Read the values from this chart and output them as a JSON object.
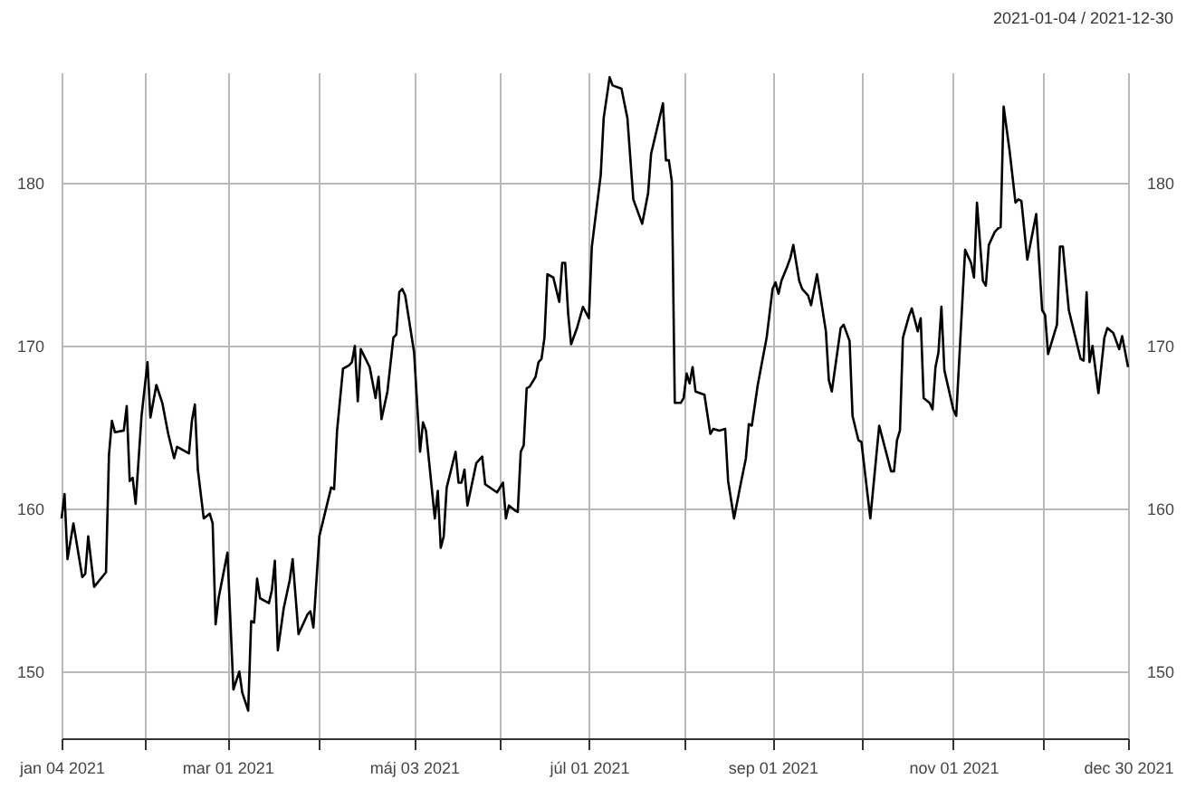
{
  "chart_data": {
    "type": "line",
    "subtitle": "2021-01-04 / 2021-12-30",
    "grid": true,
    "x": [
      "2021-01-04",
      "2021-01-05",
      "2021-01-06",
      "2021-01-08",
      "2021-01-11",
      "2021-01-12",
      "2021-01-13",
      "2021-01-15",
      "2021-01-19",
      "2021-01-20",
      "2021-01-21",
      "2021-01-22",
      "2021-01-25",
      "2021-01-26",
      "2021-01-27",
      "2021-01-28",
      "2021-01-29",
      "2021-01-31",
      "2021-02-02",
      "2021-02-03",
      "2021-02-05",
      "2021-02-07",
      "2021-02-09",
      "2021-02-11",
      "2021-02-12",
      "2021-02-16",
      "2021-02-17",
      "2021-02-18",
      "2021-02-19",
      "2021-02-21",
      "2021-02-23",
      "2021-02-24",
      "2021-02-25",
      "2021-02-26",
      "2021-03-01",
      "2021-03-03",
      "2021-03-05",
      "2021-03-06",
      "2021-03-08",
      "2021-03-09",
      "2021-03-10",
      "2021-03-11",
      "2021-03-12",
      "2021-03-15",
      "2021-03-16",
      "2021-03-17",
      "2021-03-18",
      "2021-03-20",
      "2021-03-22",
      "2021-03-23",
      "2021-03-25",
      "2021-03-28",
      "2021-03-29",
      "2021-03-30",
      "2021-04-01",
      "2021-04-03",
      "2021-04-05",
      "2021-04-06",
      "2021-04-07",
      "2021-04-09",
      "2021-04-11",
      "2021-04-12",
      "2021-04-13",
      "2021-04-14",
      "2021-04-15",
      "2021-04-18",
      "2021-04-20",
      "2021-04-21",
      "2021-04-22",
      "2021-04-24",
      "2021-04-26",
      "2021-04-27",
      "2021-04-28",
      "2021-04-29",
      "2021-04-30",
      "2021-05-03",
      "2021-05-05",
      "2021-05-06",
      "2021-05-07",
      "2021-05-10",
      "2021-05-11",
      "2021-05-12",
      "2021-05-13",
      "2021-05-14",
      "2021-05-17",
      "2021-05-18",
      "2021-05-19",
      "2021-05-20",
      "2021-05-21",
      "2021-05-24",
      "2021-05-26",
      "2021-05-27",
      "2021-05-31",
      "2021-06-02",
      "2021-06-03",
      "2021-06-04",
      "2021-06-06",
      "2021-06-07",
      "2021-06-08",
      "2021-06-09",
      "2021-06-10",
      "2021-06-11",
      "2021-06-13",
      "2021-06-14",
      "2021-06-15",
      "2021-06-16",
      "2021-06-17",
      "2021-06-19",
      "2021-06-21",
      "2021-06-22",
      "2021-06-23",
      "2021-06-24",
      "2021-06-25",
      "2021-06-27",
      "2021-06-29",
      "2021-07-01",
      "2021-07-02",
      "2021-07-05",
      "2021-07-06",
      "2021-07-08",
      "2021-07-09",
      "2021-07-12",
      "2021-07-14",
      "2021-07-16",
      "2021-07-19",
      "2021-07-21",
      "2021-07-22",
      "2021-07-26",
      "2021-07-27",
      "2021-07-28",
      "2021-07-29",
      "2021-07-30",
      "2021-08-01",
      "2021-08-02",
      "2021-08-03",
      "2021-08-04",
      "2021-08-05",
      "2021-08-06",
      "2021-08-09",
      "2021-08-11",
      "2021-08-12",
      "2021-08-14",
      "2021-08-16",
      "2021-08-17",
      "2021-08-19",
      "2021-08-21",
      "2021-08-23",
      "2021-08-24",
      "2021-08-25",
      "2021-08-27",
      "2021-08-30",
      "2021-09-01",
      "2021-09-02",
      "2021-09-03",
      "2021-09-04",
      "2021-09-06",
      "2021-09-07",
      "2021-09-08",
      "2021-09-10",
      "2021-09-11",
      "2021-09-13",
      "2021-09-14",
      "2021-09-16",
      "2021-09-19",
      "2021-09-20",
      "2021-09-21",
      "2021-09-24",
      "2021-09-25",
      "2021-09-27",
      "2021-09-28",
      "2021-09-30",
      "2021-10-01",
      "2021-10-04",
      "2021-10-07",
      "2021-10-09",
      "2021-10-11",
      "2021-10-12",
      "2021-10-13",
      "2021-10-14",
      "2021-10-15",
      "2021-10-17",
      "2021-10-18",
      "2021-10-20",
      "2021-10-21",
      "2021-10-22",
      "2021-10-24",
      "2021-10-25",
      "2021-10-26",
      "2021-10-27",
      "2021-10-28",
      "2021-10-29",
      "2021-11-01",
      "2021-11-02",
      "2021-11-05",
      "2021-11-07",
      "2021-11-08",
      "2021-11-09",
      "2021-11-11",
      "2021-11-12",
      "2021-11-13",
      "2021-11-15",
      "2021-11-16",
      "2021-11-17",
      "2021-11-18",
      "2021-11-20",
      "2021-11-22",
      "2021-11-23",
      "2021-11-24",
      "2021-11-26",
      "2021-11-29",
      "2021-12-01",
      "2021-12-02",
      "2021-12-03",
      "2021-12-06",
      "2021-12-07",
      "2021-12-08",
      "2021-12-10",
      "2021-12-14",
      "2021-12-15",
      "2021-12-16",
      "2021-12-17",
      "2021-12-18",
      "2021-12-20",
      "2021-12-22",
      "2021-12-23",
      "2021-12-25",
      "2021-12-27",
      "2021-12-28",
      "2021-12-30"
    ],
    "series": [
      {
        "color": "#000000",
        "values": [
          159.4,
          160.9,
          156.9,
          159.1,
          155.8,
          156.0,
          158.3,
          155.2,
          156.1,
          163.3,
          165.4,
          164.7,
          164.8,
          166.3,
          161.7,
          161.9,
          160.3,
          165.7,
          169.0,
          165.6,
          167.6,
          166.5,
          164.6,
          163.1,
          163.8,
          163.4,
          165.4,
          166.4,
          162.4,
          159.4,
          159.7,
          159.1,
          152.9,
          154.5,
          157.3,
          148.9,
          150.0,
          148.7,
          147.6,
          153.1,
          153.0,
          155.7,
          154.5,
          154.2,
          155.0,
          156.8,
          151.3,
          153.9,
          155.6,
          156.9,
          152.3,
          153.5,
          153.7,
          152.7,
          158.3,
          159.8,
          161.3,
          161.2,
          164.8,
          168.6,
          168.8,
          169.0,
          170.0,
          166.6,
          169.8,
          168.7,
          166.8,
          168.1,
          165.5,
          167.2,
          170.5,
          170.7,
          173.3,
          173.5,
          173.1,
          169.6,
          163.5,
          165.3,
          164.8,
          159.4,
          161.1,
          157.6,
          158.3,
          161.3,
          163.5,
          161.6,
          161.6,
          162.4,
          160.2,
          162.8,
          163.2,
          161.5,
          161.0,
          161.6,
          159.4,
          160.2,
          159.9,
          159.8,
          163.5,
          163.9,
          167.4,
          167.5,
          168.1,
          169.0,
          169.2,
          170.5,
          174.4,
          174.2,
          172.7,
          175.1,
          175.1,
          172.0,
          170.1,
          171.1,
          172.4,
          171.7,
          176.1,
          180.5,
          184.0,
          186.5,
          186.0,
          185.8,
          184.0,
          179.0,
          177.5,
          179.4,
          181.8,
          184.9,
          181.4,
          181.4,
          180.1,
          166.5,
          166.5,
          166.8,
          168.3,
          167.7,
          168.7,
          167.2,
          167.0,
          164.6,
          164.9,
          164.8,
          164.9,
          161.7,
          159.4,
          161.3,
          163.1,
          165.2,
          165.1,
          167.6,
          170.5,
          173.5,
          173.9,
          173.2,
          174.0,
          174.9,
          175.4,
          176.2,
          174.0,
          173.5,
          173.1,
          172.5,
          174.4,
          170.9,
          167.9,
          167.2,
          171.1,
          171.3,
          170.3,
          165.7,
          164.2,
          164.1,
          159.4,
          165.1,
          163.7,
          162.3,
          162.3,
          164.2,
          164.8,
          170.5,
          171.8,
          172.3,
          170.9,
          171.7,
          166.8,
          166.5,
          166.1,
          168.7,
          169.6,
          172.4,
          168.5,
          166.1,
          165.7,
          175.9,
          175.1,
          174.2,
          178.8,
          174.0,
          173.7,
          176.2,
          177.0,
          177.2,
          177.3,
          184.7,
          182.0,
          178.8,
          179.0,
          178.9,
          175.3,
          178.1,
          172.2,
          171.9,
          169.5,
          171.3,
          176.1,
          176.1,
          172.2,
          169.2,
          169.1,
          173.3,
          169.0,
          170.0,
          167.1,
          170.5,
          171.1,
          170.8,
          169.8,
          170.6,
          168.7
        ]
      }
    ],
    "xlim": [
      "2021-01-04",
      "2021-12-30"
    ],
    "xticks": [
      {
        "value": "2021-01-04",
        "label": "jan 04 2021"
      },
      {
        "value": "2021-02-01",
        "label": null
      },
      {
        "value": "2021-03-01",
        "label": "mar 01 2021"
      },
      {
        "value": "2021-04-01",
        "label": null
      },
      {
        "value": "2021-05-03",
        "label": "máj 03 2021"
      },
      {
        "value": "2021-06-01",
        "label": null
      },
      {
        "value": "2021-07-01",
        "label": "júl 01 2021"
      },
      {
        "value": "2021-08-02",
        "label": null
      },
      {
        "value": "2021-09-01",
        "label": "sep 01 2021"
      },
      {
        "value": "2021-10-01",
        "label": null
      },
      {
        "value": "2021-11-01",
        "label": "nov 01 2021"
      },
      {
        "value": "2021-12-01",
        "label": null
      },
      {
        "value": "2021-12-30",
        "label": "dec 30 2021"
      }
    ],
    "ylim": [
      145.9,
      186.8
    ],
    "yticks": [
      150,
      160,
      170,
      180
    ],
    "y2lim": [
      145.9,
      186.8
    ],
    "y2ticks": [
      150,
      160,
      170,
      180
    ]
  }
}
